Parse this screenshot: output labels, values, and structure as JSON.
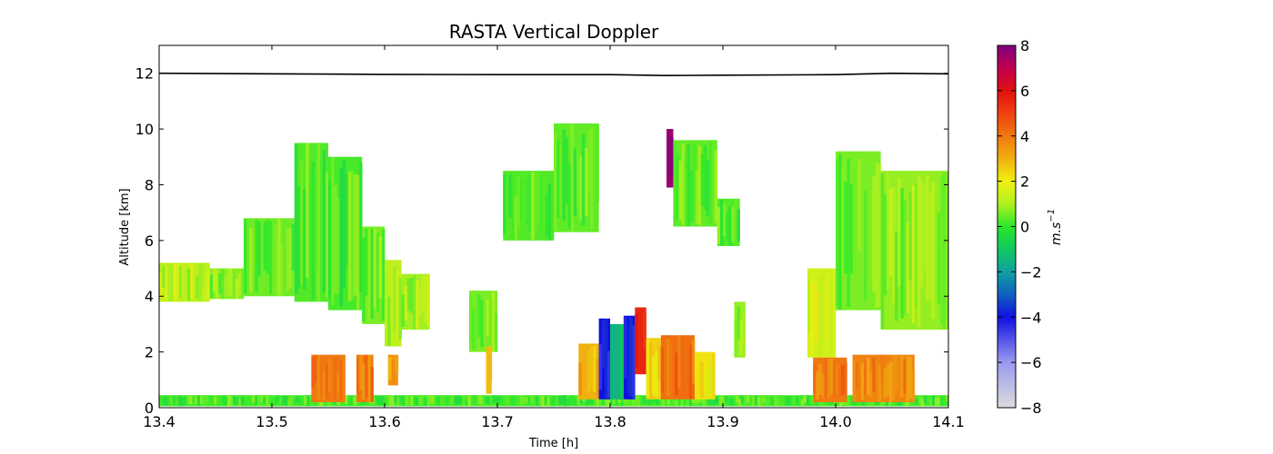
{
  "chart_data": {
    "type": "heatmap",
    "title": "RASTA Vertical Doppler",
    "xlabel": "Time [h]",
    "ylabel": "Altitude [km]",
    "colorbar_label": "m.s",
    "colorbar_label_exponent": "−1",
    "xlim": [
      13.4,
      14.1
    ],
    "ylim": [
      0,
      13
    ],
    "x_ticks": [
      13.4,
      13.5,
      13.6,
      13.7,
      13.8,
      13.9,
      14.0,
      14.1
    ],
    "x_tick_labels": [
      "13.4",
      "13.5",
      "13.6",
      "13.7",
      "13.8",
      "13.9",
      "14.0",
      "14.1"
    ],
    "y_ticks": [
      0,
      2,
      4,
      6,
      8,
      10,
      12
    ],
    "y_tick_labels": [
      "0",
      "2",
      "4",
      "6",
      "8",
      "10",
      "12"
    ],
    "colorbar_range": [
      -8,
      8
    ],
    "colorbar_ticks": [
      -8,
      -6,
      -4,
      -2,
      0,
      2,
      4,
      6,
      8
    ],
    "colorbar_tick_labels": [
      "−8",
      "−6",
      "−4",
      "−2",
      "0",
      "2",
      "4",
      "6",
      "8"
    ],
    "colormap": [
      {
        "value": -8,
        "color": "#dcdcdc"
      },
      {
        "value": -6,
        "color": "#9a9af0"
      },
      {
        "value": -4,
        "color": "#1010e0"
      },
      {
        "value": -3,
        "color": "#1060c0"
      },
      {
        "value": -2,
        "color": "#10a0a0"
      },
      {
        "value": -1,
        "color": "#10c860"
      },
      {
        "value": 0,
        "color": "#2ae82a"
      },
      {
        "value": 1,
        "color": "#b0f020"
      },
      {
        "value": 2,
        "color": "#f0f010"
      },
      {
        "value": 3,
        "color": "#f0b010"
      },
      {
        "value": 4,
        "color": "#f07810"
      },
      {
        "value": 5,
        "color": "#f04010"
      },
      {
        "value": 6,
        "color": "#e01010"
      },
      {
        "value": 7,
        "color": "#c00050"
      },
      {
        "value": 8,
        "color": "#800080"
      }
    ],
    "flight_altitude_line": {
      "color": "#000000",
      "points": [
        [
          13.4,
          12.0
        ],
        [
          13.5,
          11.98
        ],
        [
          13.6,
          11.96
        ],
        [
          13.7,
          11.95
        ],
        [
          13.8,
          11.95
        ],
        [
          13.85,
          11.92
        ],
        [
          13.9,
          11.93
        ],
        [
          14.0,
          11.95
        ],
        [
          14.05,
          12.0
        ],
        [
          14.1,
          11.98
        ]
      ]
    },
    "regions": [
      {
        "x0": 13.4,
        "x1": 14.1,
        "y0": 0.05,
        "y1": 0.45,
        "v": 0.2
      },
      {
        "x0": 13.4,
        "x1": 13.445,
        "y0": 3.8,
        "y1": 5.2,
        "v": 1.2
      },
      {
        "x0": 13.445,
        "x1": 13.475,
        "y0": 3.9,
        "y1": 5.0,
        "v": 0.7
      },
      {
        "x0": 13.475,
        "x1": 13.52,
        "y0": 4.0,
        "y1": 6.8,
        "v": 0.5
      },
      {
        "x0": 13.52,
        "x1": 13.55,
        "y0": 3.8,
        "y1": 9.5,
        "v": 0.3
      },
      {
        "x0": 13.55,
        "x1": 13.58,
        "y0": 3.5,
        "y1": 9.0,
        "v": 0.2
      },
      {
        "x0": 13.58,
        "x1": 13.6,
        "y0": 3.0,
        "y1": 6.5,
        "v": 0.6
      },
      {
        "x0": 13.6,
        "x1": 13.615,
        "y0": 2.2,
        "y1": 5.3,
        "v": 1.2
      },
      {
        "x0": 13.615,
        "x1": 13.64,
        "y0": 2.8,
        "y1": 4.8,
        "v": 0.9
      },
      {
        "x0": 13.535,
        "x1": 13.565,
        "y0": 0.2,
        "y1": 1.9,
        "v": 4.0
      },
      {
        "x0": 13.575,
        "x1": 13.59,
        "y0": 0.2,
        "y1": 1.9,
        "v": 4.0
      },
      {
        "x0": 13.603,
        "x1": 13.612,
        "y0": 0.8,
        "y1": 1.9,
        "v": 3.5
      },
      {
        "x0": 13.675,
        "x1": 13.7,
        "y0": 2.0,
        "y1": 4.2,
        "v": 0.6
      },
      {
        "x0": 13.69,
        "x1": 13.695,
        "y0": 0.5,
        "y1": 2.2,
        "v": 2.8
      },
      {
        "x0": 13.705,
        "x1": 13.75,
        "y0": 6.0,
        "y1": 8.5,
        "v": 0.3
      },
      {
        "x0": 13.75,
        "x1": 13.79,
        "y0": 6.3,
        "y1": 10.2,
        "v": 0.4
      },
      {
        "x0": 13.772,
        "x1": 13.79,
        "y0": 0.3,
        "y1": 2.3,
        "v": 3.0
      },
      {
        "x0": 13.79,
        "x1": 13.8,
        "y0": 0.3,
        "y1": 3.2,
        "v": -4.0
      },
      {
        "x0": 13.8,
        "x1": 13.812,
        "y0": 0.3,
        "y1": 3.0,
        "v": -1.5
      },
      {
        "x0": 13.812,
        "x1": 13.822,
        "y0": 0.3,
        "y1": 3.3,
        "v": -4.0
      },
      {
        "x0": 13.822,
        "x1": 13.832,
        "y0": 1.2,
        "y1": 3.6,
        "v": 5.5
      },
      {
        "x0": 13.832,
        "x1": 13.845,
        "y0": 0.3,
        "y1": 2.5,
        "v": 2.5
      },
      {
        "x0": 13.845,
        "x1": 13.875,
        "y0": 0.3,
        "y1": 2.6,
        "v": 4.2
      },
      {
        "x0": 13.875,
        "x1": 13.893,
        "y0": 0.3,
        "y1": 2.0,
        "v": 2.2
      },
      {
        "x0": 13.85,
        "x1": 13.856,
        "y0": 7.9,
        "y1": 10.0,
        "v": 7.6
      },
      {
        "x0": 13.856,
        "x1": 13.895,
        "y0": 6.5,
        "y1": 9.6,
        "v": 0.4
      },
      {
        "x0": 13.895,
        "x1": 13.915,
        "y0": 5.8,
        "y1": 7.5,
        "v": 0.3
      },
      {
        "x0": 13.91,
        "x1": 13.92,
        "y0": 1.8,
        "y1": 3.8,
        "v": 0.8
      },
      {
        "x0": 13.975,
        "x1": 14.0,
        "y0": 1.8,
        "y1": 5.0,
        "v": 1.5
      },
      {
        "x0": 13.98,
        "x1": 14.01,
        "y0": 0.2,
        "y1": 1.8,
        "v": 4.0
      },
      {
        "x0": 14.0,
        "x1": 14.04,
        "y0": 3.5,
        "y1": 9.2,
        "v": 0.6
      },
      {
        "x0": 14.015,
        "x1": 14.07,
        "y0": 0.2,
        "y1": 1.9,
        "v": 3.8
      },
      {
        "x0": 14.04,
        "x1": 14.1,
        "y0": 2.8,
        "y1": 8.5,
        "v": 0.8
      }
    ]
  }
}
